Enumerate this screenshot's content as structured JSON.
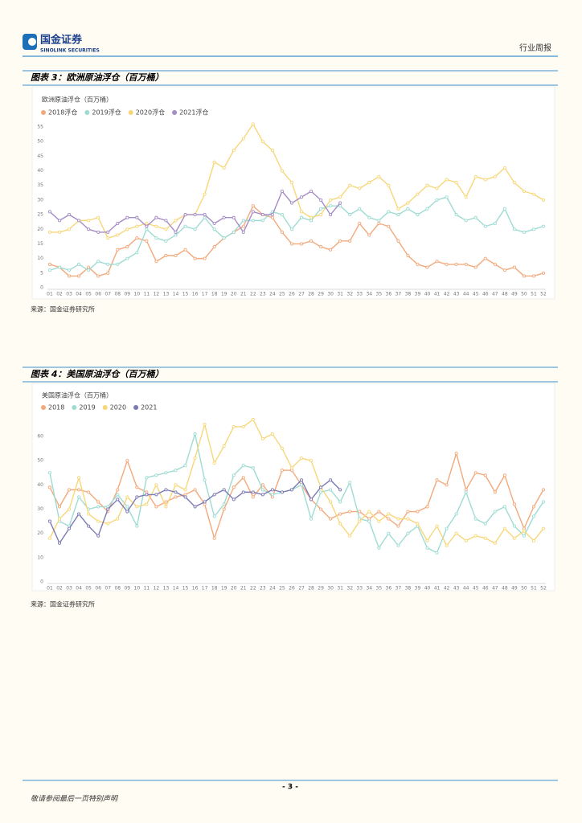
{
  "header": {
    "company": "国金证券",
    "company_en": "SINOLINK SECURITIES",
    "report_type": "行业周报"
  },
  "chart_data": [
    {
      "type": "line",
      "figure_title": "图表 3：欧洲原油浮仓（百万桶）",
      "title": "欧洲原油浮仓（百万桶）",
      "categories": [
        "01",
        "02",
        "03",
        "04",
        "05",
        "06",
        "07",
        "08",
        "09",
        "10",
        "11",
        "12",
        "13",
        "14",
        "15",
        "16",
        "17",
        "18",
        "19",
        "20",
        "21",
        "22",
        "23",
        "24",
        "25",
        "26",
        "27",
        "28",
        "29",
        "30",
        "31",
        "32",
        "33",
        "34",
        "35",
        "36",
        "37",
        "38",
        "39",
        "40",
        "41",
        "42",
        "43",
        "44",
        "45",
        "46",
        "47",
        "48",
        "49",
        "50",
        "51",
        "52"
      ],
      "series": [
        {
          "name": "2018浮仓",
          "color": "#f2a97c",
          "values": [
            8,
            7,
            4,
            4,
            7,
            4,
            5,
            13,
            14,
            17,
            16,
            9,
            11,
            11,
            13,
            10,
            10,
            14,
            17,
            19,
            21,
            28,
            25,
            24,
            19,
            15,
            15,
            16,
            14,
            13,
            16,
            16,
            22,
            18,
            22,
            21,
            16,
            11,
            8,
            7,
            9,
            8,
            8,
            8,
            7,
            10,
            8,
            6,
            7,
            4,
            4,
            5
          ]
        },
        {
          "name": "2019浮仓",
          "color": "#9edcd3",
          "values": [
            6,
            7,
            6,
            8,
            6,
            9,
            8,
            8,
            10,
            12,
            20,
            17,
            16,
            18,
            21,
            20,
            24,
            20,
            17,
            19,
            23,
            23,
            23,
            26,
            25,
            20,
            24,
            23,
            27,
            28,
            28,
            25,
            27,
            24,
            23,
            26,
            25,
            27,
            25,
            27,
            30,
            31,
            25,
            23,
            24,
            21,
            22,
            27,
            20,
            19,
            20,
            21
          ]
        },
        {
          "name": "2020浮仓",
          "color": "#f7d77a",
          "values": [
            19,
            19,
            20,
            23,
            23,
            24,
            17,
            18,
            20,
            21,
            22,
            21,
            20,
            23,
            25,
            25,
            32,
            43,
            41,
            47,
            51,
            56,
            50,
            47,
            40,
            36,
            26,
            24,
            25,
            30,
            31,
            35,
            34,
            36,
            38,
            35,
            27,
            29,
            32,
            35,
            34,
            37,
            36,
            31,
            38,
            37,
            38,
            41,
            36,
            33,
            32,
            30
          ]
        },
        {
          "name": "2021浮仓",
          "color": "#a58cc6",
          "values": [
            26,
            23,
            25,
            23,
            20,
            19,
            19,
            22,
            24,
            24,
            21,
            24,
            23,
            19,
            25,
            25,
            25,
            22,
            24,
            24,
            19,
            26,
            25,
            25,
            33,
            29,
            31,
            33,
            30,
            25,
            29,
            null,
            null,
            null,
            null,
            null,
            null,
            null,
            null,
            null,
            null,
            null,
            null,
            null,
            null,
            null,
            null,
            null,
            null,
            null,
            null,
            null
          ]
        }
      ],
      "ylim": [
        0,
        55
      ],
      "yticks": [
        0,
        5,
        10,
        15,
        20,
        25,
        30,
        35,
        40,
        45,
        50,
        55
      ],
      "grid": false,
      "source": "来源：国金证券研究所"
    },
    {
      "type": "line",
      "figure_title": "图表 4：美国原油浮仓（百万桶）",
      "title": "美国原油浮仓（百万桶）",
      "categories": [
        "01",
        "02",
        "03",
        "04",
        "05",
        "06",
        "07",
        "08",
        "09",
        "10",
        "11",
        "12",
        "13",
        "14",
        "15",
        "16",
        "17",
        "18",
        "19",
        "20",
        "21",
        "22",
        "23",
        "24",
        "25",
        "26",
        "27",
        "28",
        "29",
        "30",
        "31",
        "32",
        "33",
        "34",
        "35",
        "36",
        "37",
        "38",
        "39",
        "40",
        "41",
        "42",
        "43",
        "44",
        "45",
        "46",
        "47",
        "48",
        "49",
        "50",
        "51",
        "52"
      ],
      "series": [
        {
          "name": "2018",
          "color": "#f2a97c",
          "values": [
            39,
            31,
            38,
            38,
            37,
            33,
            29,
            38,
            50,
            39,
            37,
            31,
            33,
            35,
            36,
            38,
            32,
            18,
            30,
            39,
            43,
            35,
            40,
            35,
            46,
            46,
            40,
            34,
            30,
            26,
            28,
            29,
            29,
            26,
            29,
            26,
            23,
            29,
            29,
            31,
            42,
            40,
            53,
            38,
            45,
            44,
            37,
            44,
            32,
            22,
            31,
            38
          ]
        },
        {
          "name": "2019",
          "color": "#9edcd3",
          "values": [
            45,
            25,
            23,
            35,
            30,
            31,
            31,
            36,
            31,
            23,
            43,
            44,
            45,
            46,
            48,
            61,
            42,
            27,
            32,
            44,
            48,
            47,
            38,
            36,
            37,
            38,
            40,
            26,
            37,
            38,
            33,
            41,
            26,
            25,
            14,
            20,
            15,
            20,
            23,
            14,
            12,
            22,
            28,
            37,
            26,
            24,
            29,
            31,
            23,
            19,
            27,
            33
          ]
        },
        {
          "name": "2020",
          "color": "#f7d77a",
          "values": [
            18,
            26,
            30,
            43,
            28,
            25,
            24,
            26,
            35,
            31,
            32,
            40,
            31,
            40,
            38,
            51,
            65,
            49,
            56,
            64,
            64,
            67,
            59,
            61,
            55,
            47,
            51,
            50,
            39,
            33,
            24,
            19,
            25,
            29,
            25,
            28,
            26,
            26,
            24,
            17,
            23,
            15,
            20,
            17,
            19,
            18,
            16,
            22,
            18,
            21,
            17,
            22
          ]
        },
        {
          "name": "2021",
          "color": "#7b79b3",
          "values": [
            25,
            16,
            22,
            28,
            23,
            19,
            30,
            34,
            29,
            35,
            36,
            36,
            38,
            37,
            35,
            31,
            33,
            36,
            38,
            34,
            37,
            37,
            36,
            38,
            37,
            38,
            42,
            34,
            39,
            42,
            38,
            null,
            null,
            null,
            null,
            null,
            null,
            null,
            null,
            null,
            null,
            null,
            null,
            null,
            null,
            null,
            null,
            null,
            null,
            null,
            null,
            null
          ]
        }
      ],
      "ylim": [
        0,
        60
      ],
      "yticks": [
        0,
        10,
        20,
        30,
        40,
        50,
        60
      ],
      "grid": false,
      "source": "来源：国金证券研究所"
    }
  ],
  "footer": {
    "page": "- 3 -",
    "disclaimer": "敬请参阅最后一页特别声明"
  }
}
